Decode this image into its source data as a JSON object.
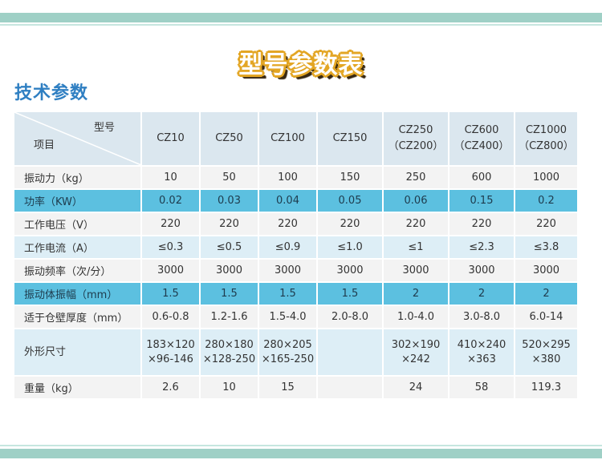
{
  "banner_title": "型号参数表",
  "section_title": "技术参数",
  "table": {
    "corner_top": "型号",
    "corner_bottom": "项目",
    "models": [
      {
        "line1": "CZ10",
        "line2": ""
      },
      {
        "line1": "CZ50",
        "line2": ""
      },
      {
        "line1": "CZ100",
        "line2": ""
      },
      {
        "line1": "CZ150",
        "line2": ""
      },
      {
        "line1": "CZ250",
        "line2": "（CZ200）"
      },
      {
        "line1": "CZ600",
        "line2": "（CZ400）"
      },
      {
        "line1": "CZ1000",
        "line2": "（CZ800）"
      }
    ],
    "rows": [
      {
        "label": "振动力（kg）",
        "values": [
          "10",
          "50",
          "100",
          "150",
          "250",
          "600",
          "1000"
        ]
      },
      {
        "label": "功率（KW）",
        "values": [
          "0.02",
          "0.03",
          "0.04",
          "0.05",
          "0.06",
          "0.15",
          "0.2"
        ]
      },
      {
        "label": "工作电压（V）",
        "values": [
          "220",
          "220",
          "220",
          "220",
          "220",
          "220",
          "220"
        ]
      },
      {
        "label": "工作电流（A）",
        "values": [
          "≤0.3",
          "≤0.5",
          "≤0.9",
          "≤1.0",
          "≤1",
          "≤2.3",
          "≤3.8"
        ]
      },
      {
        "label": "振动频率（次/分）",
        "values": [
          "3000",
          "3000",
          "3000",
          "3000",
          "3000",
          "3000",
          "3000"
        ]
      },
      {
        "label": "振动体振幅（mm）",
        "values": [
          "1.5",
          "1.5",
          "1.5",
          "1.5",
          "2",
          "2",
          "2"
        ]
      },
      {
        "label": "适于仓壁厚度（mm）",
        "values": [
          "0.6-0.8",
          "1.2-1.6",
          "1.5-4.0",
          "2.0-8.0",
          "1.0-4.0",
          "3.0-8.0",
          "6.0-14"
        ]
      },
      {
        "label": "外形尺寸",
        "values": [
          {
            "line1": "183×120",
            "line2": "×96-146"
          },
          {
            "line1": "280×180",
            "line2": "×128-250"
          },
          {
            "line1": "280×205",
            "line2": "×165-250"
          },
          {
            "line1": "",
            "line2": ""
          },
          {
            "line1": "302×190",
            "line2": "×242"
          },
          {
            "line1": "410×240",
            "line2": "×363"
          },
          {
            "line1": "520×295",
            "line2": "×380"
          }
        ]
      },
      {
        "label": "重量（kg）",
        "values": [
          "2.6",
          "10",
          "15",
          "",
          "24",
          "58",
          "119.3"
        ]
      }
    ]
  },
  "colors": {
    "band": "#9fd0c6",
    "title_blue": "#2f7fc2",
    "highlight_row": "#5cc0e0",
    "light_row": "#ddeef6",
    "plain_row": "#f3f3f3",
    "banner_outline": "#e3a625"
  }
}
